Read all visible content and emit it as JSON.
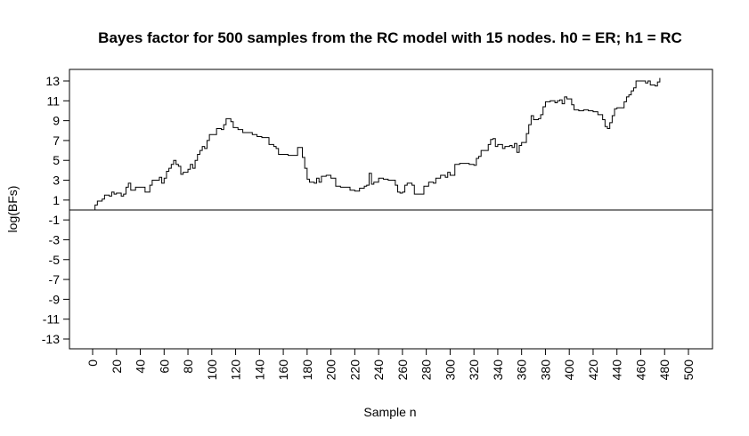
{
  "chart_data": {
    "type": "line",
    "title": "Bayes factor for 500 samples from the RC model with 15 nodes. h0 = ER; h1 = RC",
    "xlabel": "Sample n",
    "ylabel": "log(BFs)",
    "xlim": [
      0,
      500
    ],
    "ylim": [
      -13,
      13
    ],
    "x_ticks": [
      "0",
      "20",
      "40",
      "60",
      "80",
      "100",
      "120",
      "140",
      "160",
      "180",
      "200",
      "220",
      "240",
      "260",
      "280",
      "300",
      "320",
      "340",
      "360",
      "380",
      "400",
      "420",
      "440",
      "460",
      "480",
      "500"
    ],
    "y_ticks": [
      "13",
      "11",
      "9",
      "7",
      "5",
      "3",
      "1",
      "-1",
      "-3",
      "-5",
      "-7",
      "-9",
      "-11",
      "-13"
    ],
    "reference_line": {
      "y": 0
    },
    "grid": false,
    "series": [
      {
        "color": "#000000",
        "points": [
          [
            0,
            0
          ],
          [
            2,
            0.5
          ],
          [
            4,
            0.9
          ],
          [
            8,
            1.1
          ],
          [
            10,
            1.5
          ],
          [
            14,
            1.4
          ],
          [
            16,
            1.8
          ],
          [
            18,
            1.6
          ],
          [
            20,
            1.7
          ],
          [
            24,
            1.4
          ],
          [
            26,
            1.6
          ],
          [
            28,
            2.3
          ],
          [
            30,
            2.7
          ],
          [
            32,
            2.0
          ],
          [
            36,
            2.3
          ],
          [
            40,
            2.3
          ],
          [
            44,
            1.8
          ],
          [
            48,
            2.5
          ],
          [
            50,
            3.0
          ],
          [
            56,
            3.3
          ],
          [
            58,
            2.7
          ],
          [
            60,
            3.2
          ],
          [
            62,
            3.9
          ],
          [
            64,
            4.2
          ],
          [
            66,
            4.6
          ],
          [
            68,
            5.0
          ],
          [
            70,
            4.6
          ],
          [
            72,
            4.4
          ],
          [
            74,
            3.6
          ],
          [
            76,
            3.8
          ],
          [
            80,
            4.1
          ],
          [
            82,
            4.6
          ],
          [
            84,
            4.2
          ],
          [
            86,
            5.0
          ],
          [
            88,
            5.6
          ],
          [
            90,
            6.0
          ],
          [
            92,
            6.4
          ],
          [
            94,
            6.2
          ],
          [
            96,
            7.0
          ],
          [
            98,
            7.6
          ],
          [
            102,
            7.6
          ],
          [
            104,
            8.2
          ],
          [
            108,
            8.1
          ],
          [
            110,
            8.6
          ],
          [
            112,
            9.2
          ],
          [
            116,
            8.9
          ],
          [
            118,
            8.3
          ],
          [
            122,
            8.1
          ],
          [
            126,
            7.8
          ],
          [
            130,
            7.8
          ],
          [
            134,
            7.6
          ],
          [
            138,
            7.4
          ],
          [
            142,
            7.3
          ],
          [
            146,
            7.3
          ],
          [
            148,
            6.6
          ],
          [
            152,
            6.4
          ],
          [
            154,
            6.2
          ],
          [
            156,
            5.6
          ],
          [
            158,
            5.6
          ],
          [
            164,
            5.5
          ],
          [
            168,
            5.5
          ],
          [
            170,
            5.5
          ],
          [
            172,
            6.3
          ],
          [
            174,
            6.3
          ],
          [
            176,
            5.3
          ],
          [
            178,
            4.2
          ],
          [
            180,
            3.1
          ],
          [
            182,
            2.8
          ],
          [
            186,
            2.7
          ],
          [
            188,
            3.2
          ],
          [
            190,
            2.8
          ],
          [
            192,
            3.4
          ],
          [
            196,
            3.5
          ],
          [
            200,
            3.2
          ],
          [
            204,
            2.4
          ],
          [
            208,
            2.3
          ],
          [
            212,
            2.3
          ],
          [
            216,
            2.0
          ],
          [
            220,
            1.9
          ],
          [
            224,
            2.2
          ],
          [
            228,
            2.4
          ],
          [
            230,
            2.5
          ],
          [
            232,
            3.7
          ],
          [
            234,
            2.6
          ],
          [
            236,
            2.8
          ],
          [
            240,
            3.2
          ],
          [
            244,
            3.1
          ],
          [
            248,
            3.0
          ],
          [
            252,
            3.0
          ],
          [
            254,
            2.5
          ],
          [
            256,
            1.8
          ],
          [
            258,
            1.7
          ],
          [
            260,
            1.8
          ],
          [
            262,
            2.5
          ],
          [
            264,
            2.7
          ],
          [
            266,
            2.7
          ],
          [
            268,
            2.5
          ],
          [
            270,
            1.6
          ],
          [
            274,
            1.6
          ],
          [
            278,
            2.4
          ],
          [
            282,
            2.8
          ],
          [
            286,
            2.7
          ],
          [
            288,
            3.2
          ],
          [
            292,
            3.5
          ],
          [
            296,
            3.3
          ],
          [
            298,
            3.8
          ],
          [
            300,
            3.5
          ],
          [
            304,
            4.6
          ],
          [
            308,
            4.7
          ],
          [
            312,
            4.7
          ],
          [
            316,
            4.6
          ],
          [
            320,
            4.5
          ],
          [
            322,
            5.2
          ],
          [
            324,
            5.4
          ],
          [
            326,
            6.0
          ],
          [
            328,
            6.0
          ],
          [
            332,
            6.6
          ],
          [
            334,
            7.1
          ],
          [
            336,
            7.2
          ],
          [
            338,
            6.4
          ],
          [
            340,
            6.6
          ],
          [
            344,
            6.2
          ],
          [
            346,
            6.4
          ],
          [
            350,
            6.5
          ],
          [
            352,
            6.3
          ],
          [
            354,
            6.7
          ],
          [
            356,
            5.8
          ],
          [
            358,
            6.5
          ],
          [
            360,
            6.8
          ],
          [
            364,
            7.7
          ],
          [
            366,
            8.6
          ],
          [
            368,
            9.5
          ],
          [
            370,
            9.1
          ],
          [
            374,
            9.2
          ],
          [
            376,
            9.6
          ],
          [
            378,
            10.4
          ],
          [
            380,
            10.9
          ],
          [
            384,
            11.0
          ],
          [
            388,
            10.8
          ],
          [
            390,
            11.0
          ],
          [
            392,
            11.1
          ],
          [
            394,
            10.7
          ],
          [
            396,
            11.4
          ],
          [
            398,
            11.2
          ],
          [
            402,
            10.6
          ],
          [
            404,
            10.1
          ],
          [
            408,
            10.0
          ],
          [
            412,
            10.1
          ],
          [
            416,
            10.0
          ],
          [
            420,
            9.9
          ],
          [
            424,
            9.6
          ],
          [
            428,
            9.1
          ],
          [
            430,
            8.4
          ],
          [
            432,
            8.2
          ],
          [
            434,
            8.8
          ],
          [
            436,
            9.5
          ],
          [
            438,
            10.2
          ],
          [
            440,
            10.3
          ],
          [
            444,
            10.3
          ],
          [
            446,
            10.9
          ],
          [
            448,
            11.4
          ],
          [
            450,
            11.6
          ],
          [
            452,
            12.0
          ],
          [
            454,
            12.3
          ],
          [
            456,
            13.0
          ],
          [
            460,
            13.0
          ],
          [
            464,
            12.8
          ],
          [
            466,
            13.0
          ],
          [
            468,
            12.6
          ],
          [
            472,
            12.5
          ],
          [
            474,
            12.9
          ],
          [
            476,
            13.3
          ]
        ]
      }
    ]
  }
}
